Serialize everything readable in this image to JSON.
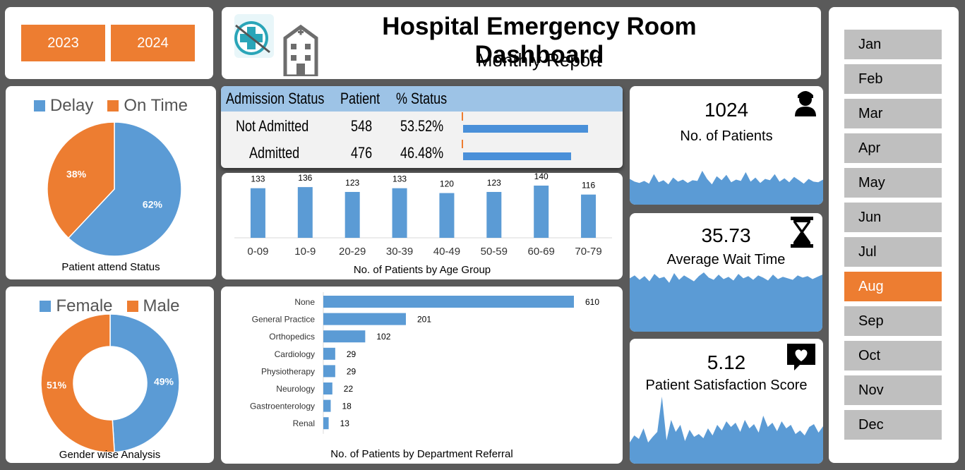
{
  "years": [
    "2023",
    "2024"
  ],
  "header": {
    "title": "Hospital Emergency Room Dashboard",
    "subtitle": "Monthly Report"
  },
  "months": [
    "Jan",
    "Feb",
    "Mar",
    "Apr",
    "May",
    "Jun",
    "Jul",
    "Aug",
    "Sep",
    "Oct",
    "Nov",
    "Dec"
  ],
  "selected_month": "Aug",
  "colors": {
    "blue": "#5b9bd5",
    "orange": "#ed7d31",
    "bar_blue": "#4a90d9",
    "header_blue": "#9dc3e6",
    "month_gray": "#bfbfbf",
    "background": "#5a5a5a"
  },
  "attend_status": {
    "caption": "Patient attend Status",
    "legend": [
      "Delay",
      "On Time"
    ]
  },
  "gender": {
    "caption": "Gender wise Analysis",
    "legend": [
      "Female",
      "Male"
    ]
  },
  "admission": {
    "headers": [
      "Admission Status",
      "Patient",
      "% Status"
    ],
    "rows": [
      {
        "status": "Not Admitted",
        "patients": "548",
        "pct": "53.52%",
        "fraction": 0.5352
      },
      {
        "status": "Admitted",
        "patients": "476",
        "pct": "46.48%",
        "fraction": 0.4648
      }
    ]
  },
  "age_group": {
    "caption": "No. of Patients by Age Group"
  },
  "department": {
    "caption": "No. of Patients by Department Referral"
  },
  "kpis": {
    "patients": {
      "value": "1024",
      "label": "No. of Patients",
      "icon": "person-icon"
    },
    "wait": {
      "value": "35.73",
      "label": "Average Wait Time",
      "icon": "hourglass-icon"
    },
    "satisfaction": {
      "value": "5.12",
      "label": "Patient Satisfaction Score",
      "icon": "heart-chat-icon"
    }
  },
  "chart_data": [
    {
      "type": "pie",
      "categories": [
        "Delay",
        "On Time"
      ],
      "values": [
        62,
        38
      ],
      "labels": [
        "62%",
        "38%"
      ]
    },
    {
      "type": "pie",
      "categories": [
        "Female",
        "Male"
      ],
      "values": [
        49,
        51
      ],
      "labels": [
        "49%",
        "51%"
      ]
    },
    {
      "type": "bar",
      "categories": [
        "0-09",
        "10-9",
        "20-29",
        "30-39",
        "40-49",
        "50-59",
        "60-69",
        "70-79"
      ],
      "values": [
        133,
        136,
        123,
        133,
        120,
        123,
        140,
        116
      ],
      "ylim": [
        0,
        150
      ]
    },
    {
      "type": "bar",
      "orientation": "horizontal",
      "categories": [
        "None",
        "General Practice",
        "Orthopedics",
        "Cardiology",
        "Physiotherapy",
        "Neurology",
        "Gastroenterology",
        "Renal"
      ],
      "values": [
        610,
        201,
        102,
        29,
        29,
        22,
        18,
        13
      ]
    },
    {
      "type": "area",
      "values": [
        38,
        34,
        32,
        35,
        31,
        45,
        33,
        36,
        30,
        40,
        34,
        37,
        32,
        36,
        35,
        50,
        38,
        30,
        42,
        36,
        44,
        33,
        37,
        35,
        48,
        34,
        40,
        32,
        38,
        36,
        45,
        34,
        39,
        33,
        41,
        36,
        31,
        38,
        34,
        33,
        37
      ]
    },
    {
      "type": "area",
      "values": [
        72,
        76,
        70,
        75,
        68,
        78,
        72,
        74,
        66,
        79,
        70,
        76,
        72,
        68,
        75,
        80,
        73,
        70,
        77,
        71,
        74,
        69,
        78,
        72,
        75,
        70,
        76,
        73,
        69,
        77,
        71,
        74,
        72,
        70,
        76,
        73,
        75,
        71,
        74,
        77
      ]
    },
    {
      "type": "area",
      "values": [
        30,
        40,
        35,
        50,
        30,
        38,
        45,
        95,
        33,
        62,
        45,
        55,
        32,
        48,
        38,
        42,
        36,
        50,
        40,
        55,
        47,
        60,
        52,
        58,
        45,
        62,
        50,
        56,
        44,
        68,
        52,
        58,
        46,
        60,
        50,
        55,
        42,
        47,
        40,
        52,
        56,
        44,
        53
      ]
    }
  ]
}
